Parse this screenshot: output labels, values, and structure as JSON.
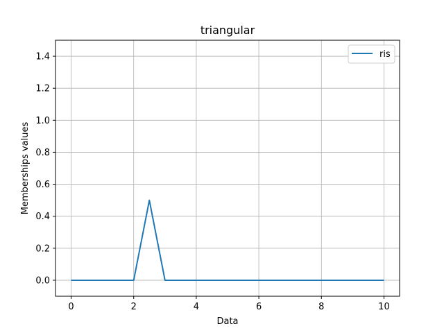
{
  "chart_data": {
    "type": "line",
    "title": "triangular",
    "xlabel": "Data",
    "ylabel": "Memberships values",
    "xlim": [
      -0.5,
      10.5
    ],
    "ylim": [
      -0.1,
      1.5
    ],
    "xticks": [
      0,
      2,
      4,
      6,
      8,
      10
    ],
    "yticks": [
      0.0,
      0.2,
      0.4,
      0.6,
      0.8,
      1.0,
      1.2,
      1.4
    ],
    "xtick_labels": [
      "0",
      "2",
      "4",
      "6",
      "8",
      "10"
    ],
    "ytick_labels": [
      "0.0",
      "0.2",
      "0.4",
      "0.6",
      "0.8",
      "1.0",
      "1.2",
      "1.4"
    ],
    "grid": true,
    "legend_position": "top-right",
    "series": [
      {
        "name": "ris",
        "color": "#1f77b4",
        "x": [
          0,
          0.5,
          1,
          1.5,
          2,
          2.5,
          3,
          3.5,
          4,
          4.5,
          5,
          5.5,
          6,
          6.5,
          7,
          7.5,
          8,
          8.5,
          9,
          9.5,
          10
        ],
        "y": [
          0,
          0,
          0,
          0,
          0,
          0.5,
          0,
          0,
          0,
          0,
          0,
          0,
          0,
          0,
          0,
          0,
          0,
          0,
          0,
          0,
          0
        ]
      }
    ]
  }
}
